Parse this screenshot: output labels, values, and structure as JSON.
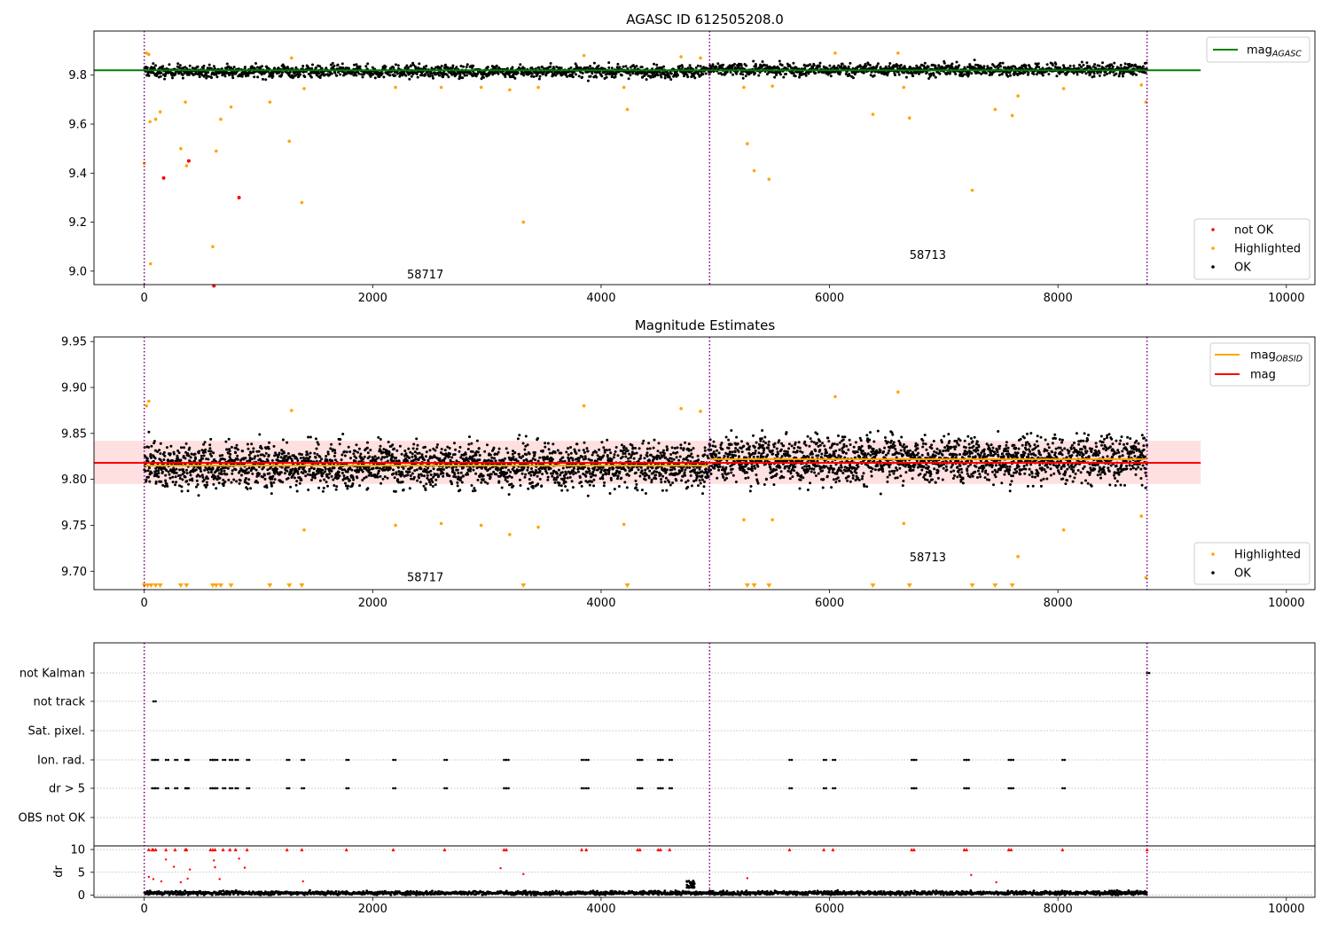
{
  "chart_data": [
    {
      "type": "scatter",
      "title": "AGASC ID 612505208.0",
      "xlim": [
        -440,
        10250
      ],
      "ylim": [
        8.945,
        9.98
      ],
      "xticks": [
        0,
        2000,
        4000,
        6000,
        8000,
        10000
      ],
      "xtick_labels": [
        "0",
        "2000",
        "4000",
        "6000",
        "8000",
        "10000"
      ],
      "yticks": [
        9.0,
        9.2,
        9.4,
        9.6,
        9.8
      ],
      "ytick_labels": [
        "9.0",
        "9.2",
        "9.4",
        "9.6",
        "9.8"
      ],
      "vlines": [
        0,
        4950,
        8780
      ],
      "obsid_labels": [
        {
          "text": "58717",
          "x": 2300,
          "y": 8.97
        },
        {
          "text": "58713",
          "x": 6700,
          "y": 9.05
        }
      ],
      "legend_lines": [
        {
          "name": "mag",
          "sub": "AGASC",
          "color": "#008000"
        }
      ],
      "legend_lines_placement": "top-right",
      "legend_points": [
        {
          "name": "not OK",
          "color": "#ff0000"
        },
        {
          "name": "Highlighted",
          "color": "#ffa500"
        },
        {
          "name": "OK",
          "color": "#000000"
        }
      ],
      "legend_points_placement": "bottom-right",
      "mag_agasc": 9.82,
      "ok_band": {
        "x_range": [
          0,
          8780
        ],
        "segments": [
          {
            "x0": 0,
            "x1": 4950,
            "center": 9.815,
            "spread": 0.022
          },
          {
            "x0": 4950,
            "x1": 8780,
            "center": 9.822,
            "spread": 0.022
          }
        ]
      },
      "highlighted": [
        [
          0,
          9.44
        ],
        [
          20,
          9.89
        ],
        [
          40,
          9.885
        ],
        [
          50,
          9.61
        ],
        [
          55,
          9.03
        ],
        [
          100,
          9.62
        ],
        [
          140,
          9.65
        ],
        [
          320,
          9.5
        ],
        [
          360,
          9.69
        ],
        [
          370,
          9.43
        ],
        [
          600,
          9.1
        ],
        [
          630,
          9.49
        ],
        [
          670,
          9.62
        ],
        [
          760,
          9.67
        ],
        [
          1100,
          9.69
        ],
        [
          1270,
          9.53
        ],
        [
          1290,
          9.87
        ],
        [
          1380,
          9.28
        ],
        [
          1400,
          9.745
        ],
        [
          2200,
          9.75
        ],
        [
          2600,
          9.75
        ],
        [
          2950,
          9.75
        ],
        [
          3200,
          9.74
        ],
        [
          3320,
          9.2
        ],
        [
          3450,
          9.75
        ],
        [
          3850,
          9.88
        ],
        [
          4200,
          9.75
        ],
        [
          4230,
          9.66
        ],
        [
          4700,
          9.875
        ],
        [
          4870,
          9.87
        ],
        [
          5250,
          9.75
        ],
        [
          5280,
          9.52
        ],
        [
          5340,
          9.41
        ],
        [
          5470,
          9.375
        ],
        [
          5500,
          9.755
        ],
        [
          6050,
          9.89
        ],
        [
          6380,
          9.64
        ],
        [
          6600,
          9.89
        ],
        [
          6650,
          9.75
        ],
        [
          6700,
          9.625
        ],
        [
          7250,
          9.33
        ],
        [
          7450,
          9.66
        ],
        [
          7600,
          9.635
        ],
        [
          7650,
          9.715
        ],
        [
          8050,
          9.745
        ],
        [
          8730,
          9.76
        ],
        [
          8770,
          9.69
        ]
      ],
      "not_ok": [
        [
          170,
          9.38
        ],
        [
          390,
          9.45
        ],
        [
          830,
          9.3
        ],
        [
          610,
          8.94
        ]
      ]
    },
    {
      "type": "scatter",
      "title": "Magnitude Estimates",
      "xlim": [
        -440,
        10250
      ],
      "ylim": [
        9.68,
        9.955
      ],
      "xticks": [
        0,
        2000,
        4000,
        6000,
        8000,
        10000
      ],
      "xtick_labels": [
        "0",
        "2000",
        "4000",
        "6000",
        "8000",
        "10000"
      ],
      "yticks": [
        9.7,
        9.75,
        9.8,
        9.85,
        9.9,
        9.95
      ],
      "ytick_labels": [
        "9.70",
        "9.75",
        "9.80",
        "9.85",
        "9.90",
        "9.95"
      ],
      "vlines": [
        0,
        4950,
        8780
      ],
      "obsid_labels": [
        {
          "text": "58717",
          "x": 2300,
          "y": 9.689
        },
        {
          "text": "58713",
          "x": 6700,
          "y": 9.711
        }
      ],
      "legend_lines": [
        {
          "name": "mag",
          "sub": "OBSID",
          "color": "#ffa500"
        },
        {
          "name": "mag",
          "sub": "",
          "color": "#ff0000"
        }
      ],
      "legend_lines_placement": "top-right",
      "legend_points": [
        {
          "name": "Highlighted",
          "color": "#ffa500"
        },
        {
          "name": "OK",
          "color": "#000000"
        }
      ],
      "legend_points_placement": "bottom-right",
      "mag": 9.818,
      "mag_band": [
        9.795,
        9.842
      ],
      "mag_obsid": [
        {
          "x0": 0,
          "x1": 4950,
          "y": 9.815
        },
        {
          "x0": 4950,
          "x1": 8780,
          "y": 9.822
        }
      ],
      "ok_band": {
        "x_range": [
          0,
          8780
        ],
        "segments": [
          {
            "x0": 0,
            "x1": 4950,
            "center": 9.815,
            "spread": 0.021
          },
          {
            "x0": 4950,
            "x1": 8780,
            "center": 9.822,
            "spread": 0.022
          }
        ]
      },
      "highlighted": [
        [
          20,
          9.88
        ],
        [
          40,
          9.885
        ],
        [
          1290,
          9.875
        ],
        [
          1400,
          9.745
        ],
        [
          2200,
          9.75
        ],
        [
          2600,
          9.752
        ],
        [
          2950,
          9.75
        ],
        [
          3200,
          9.74
        ],
        [
          3450,
          9.748
        ],
        [
          3850,
          9.88
        ],
        [
          4200,
          9.751
        ],
        [
          4700,
          9.877
        ],
        [
          4870,
          9.874
        ],
        [
          5250,
          9.756
        ],
        [
          5500,
          9.756
        ],
        [
          6050,
          9.89
        ],
        [
          6600,
          9.895
        ],
        [
          6650,
          9.752
        ],
        [
          7650,
          9.716
        ],
        [
          8050,
          9.745
        ],
        [
          8730,
          9.76
        ],
        [
          8770,
          9.693
        ]
      ],
      "clipped_markers_x": [
        0,
        30,
        60,
        100,
        140,
        320,
        370,
        600,
        630,
        670,
        760,
        1100,
        1270,
        1380,
        3320,
        4230,
        5280,
        5340,
        5470,
        6380,
        6700,
        7250,
        7450,
        7600
      ]
    },
    {
      "type": "scatter",
      "title": "",
      "xlim": [
        -440,
        10250
      ],
      "flag_rows": [
        "not Kalman",
        "not track",
        "Sat. pixel.",
        "Ion. rad.",
        "dr > 5",
        "OBS not OK"
      ],
      "flags": {
        "not Kalman": [
          8780
        ],
        "not track": [
          80
        ],
        "Sat. pixel.": [],
        "Ion. rad.": [
          70,
          100,
          190,
          270,
          360,
          370,
          580,
          600,
          620,
          690,
          750,
          800,
          900,
          1250,
          1380,
          1770,
          2180,
          2630,
          3150,
          3170,
          3830,
          3870,
          4320,
          4340,
          4500,
          4520,
          4600,
          5650,
          5950,
          6030,
          6720,
          6740,
          7180,
          7200,
          7570,
          7590,
          8040
        ],
        "dr > 5": [
          70,
          100,
          190,
          270,
          360,
          370,
          580,
          600,
          620,
          690,
          750,
          800,
          900,
          1250,
          1380,
          1770,
          2180,
          2630,
          3150,
          3170,
          3830,
          3870,
          4320,
          4340,
          4500,
          4520,
          4600,
          5650,
          5950,
          6030,
          6720,
          6740,
          7180,
          7200,
          7570,
          7590,
          8040
        ],
        "OBS not OK": []
      },
      "dr_ylabel": "dr",
      "dr_ylim": [
        -0.5,
        10.8
      ],
      "dr_yticks": [
        0,
        5,
        10
      ],
      "dr_ytick_labels": [
        "0",
        "5",
        "10"
      ],
      "dr_red_capped_x": [
        40,
        70,
        80,
        100,
        190,
        270,
        360,
        370,
        580,
        600,
        620,
        690,
        750,
        800,
        900,
        1250,
        1380,
        1770,
        2180,
        2630,
        3150,
        3170,
        3830,
        3870,
        4320,
        4340,
        4500,
        4520,
        4600,
        5650,
        5950,
        6030,
        6720,
        6740,
        7180,
        7200,
        7570,
        7590,
        8040,
        8780
      ],
      "dr_red": [
        [
          40,
          4
        ],
        [
          80,
          3.5
        ],
        [
          150,
          3
        ],
        [
          190,
          7.8
        ],
        [
          260,
          6.2
        ],
        [
          320,
          2.8
        ],
        [
          380,
          3.6
        ],
        [
          400,
          5.6
        ],
        [
          610,
          7.6
        ],
        [
          620,
          6.1
        ],
        [
          660,
          3.5
        ],
        [
          830,
          8
        ],
        [
          880,
          6
        ],
        [
          1390,
          3
        ],
        [
          3120,
          5.9
        ],
        [
          3320,
          4.6
        ],
        [
          5280,
          3.7
        ],
        [
          7240,
          4.4
        ],
        [
          7460,
          2.8
        ]
      ],
      "dr_ok_band": {
        "x_range": [
          0,
          8780
        ],
        "center": 0.45,
        "spread": 0.35
      },
      "dr_bump": {
        "x0": 4750,
        "x1": 4820,
        "top": 3.2
      }
    }
  ]
}
